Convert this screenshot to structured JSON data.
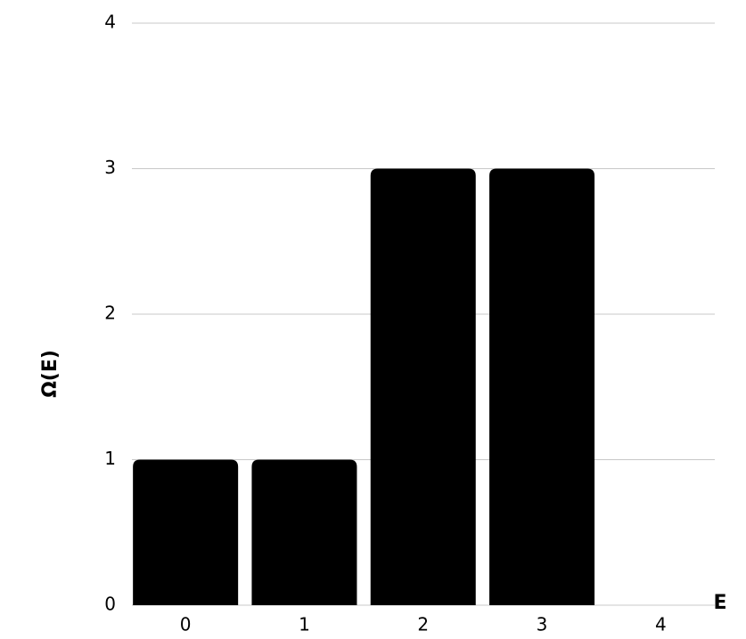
{
  "chart_data": {
    "type": "bar",
    "x_label": "E",
    "y_label": "Ω(E)",
    "categories": [
      "0",
      "1",
      "2",
      "3",
      "4"
    ],
    "values": [
      1,
      1,
      3,
      3,
      0
    ],
    "color": "#000000",
    "ylim": [
      0,
      4
    ],
    "yticks": [
      0,
      1,
      2,
      3,
      4
    ],
    "grid": true
  }
}
